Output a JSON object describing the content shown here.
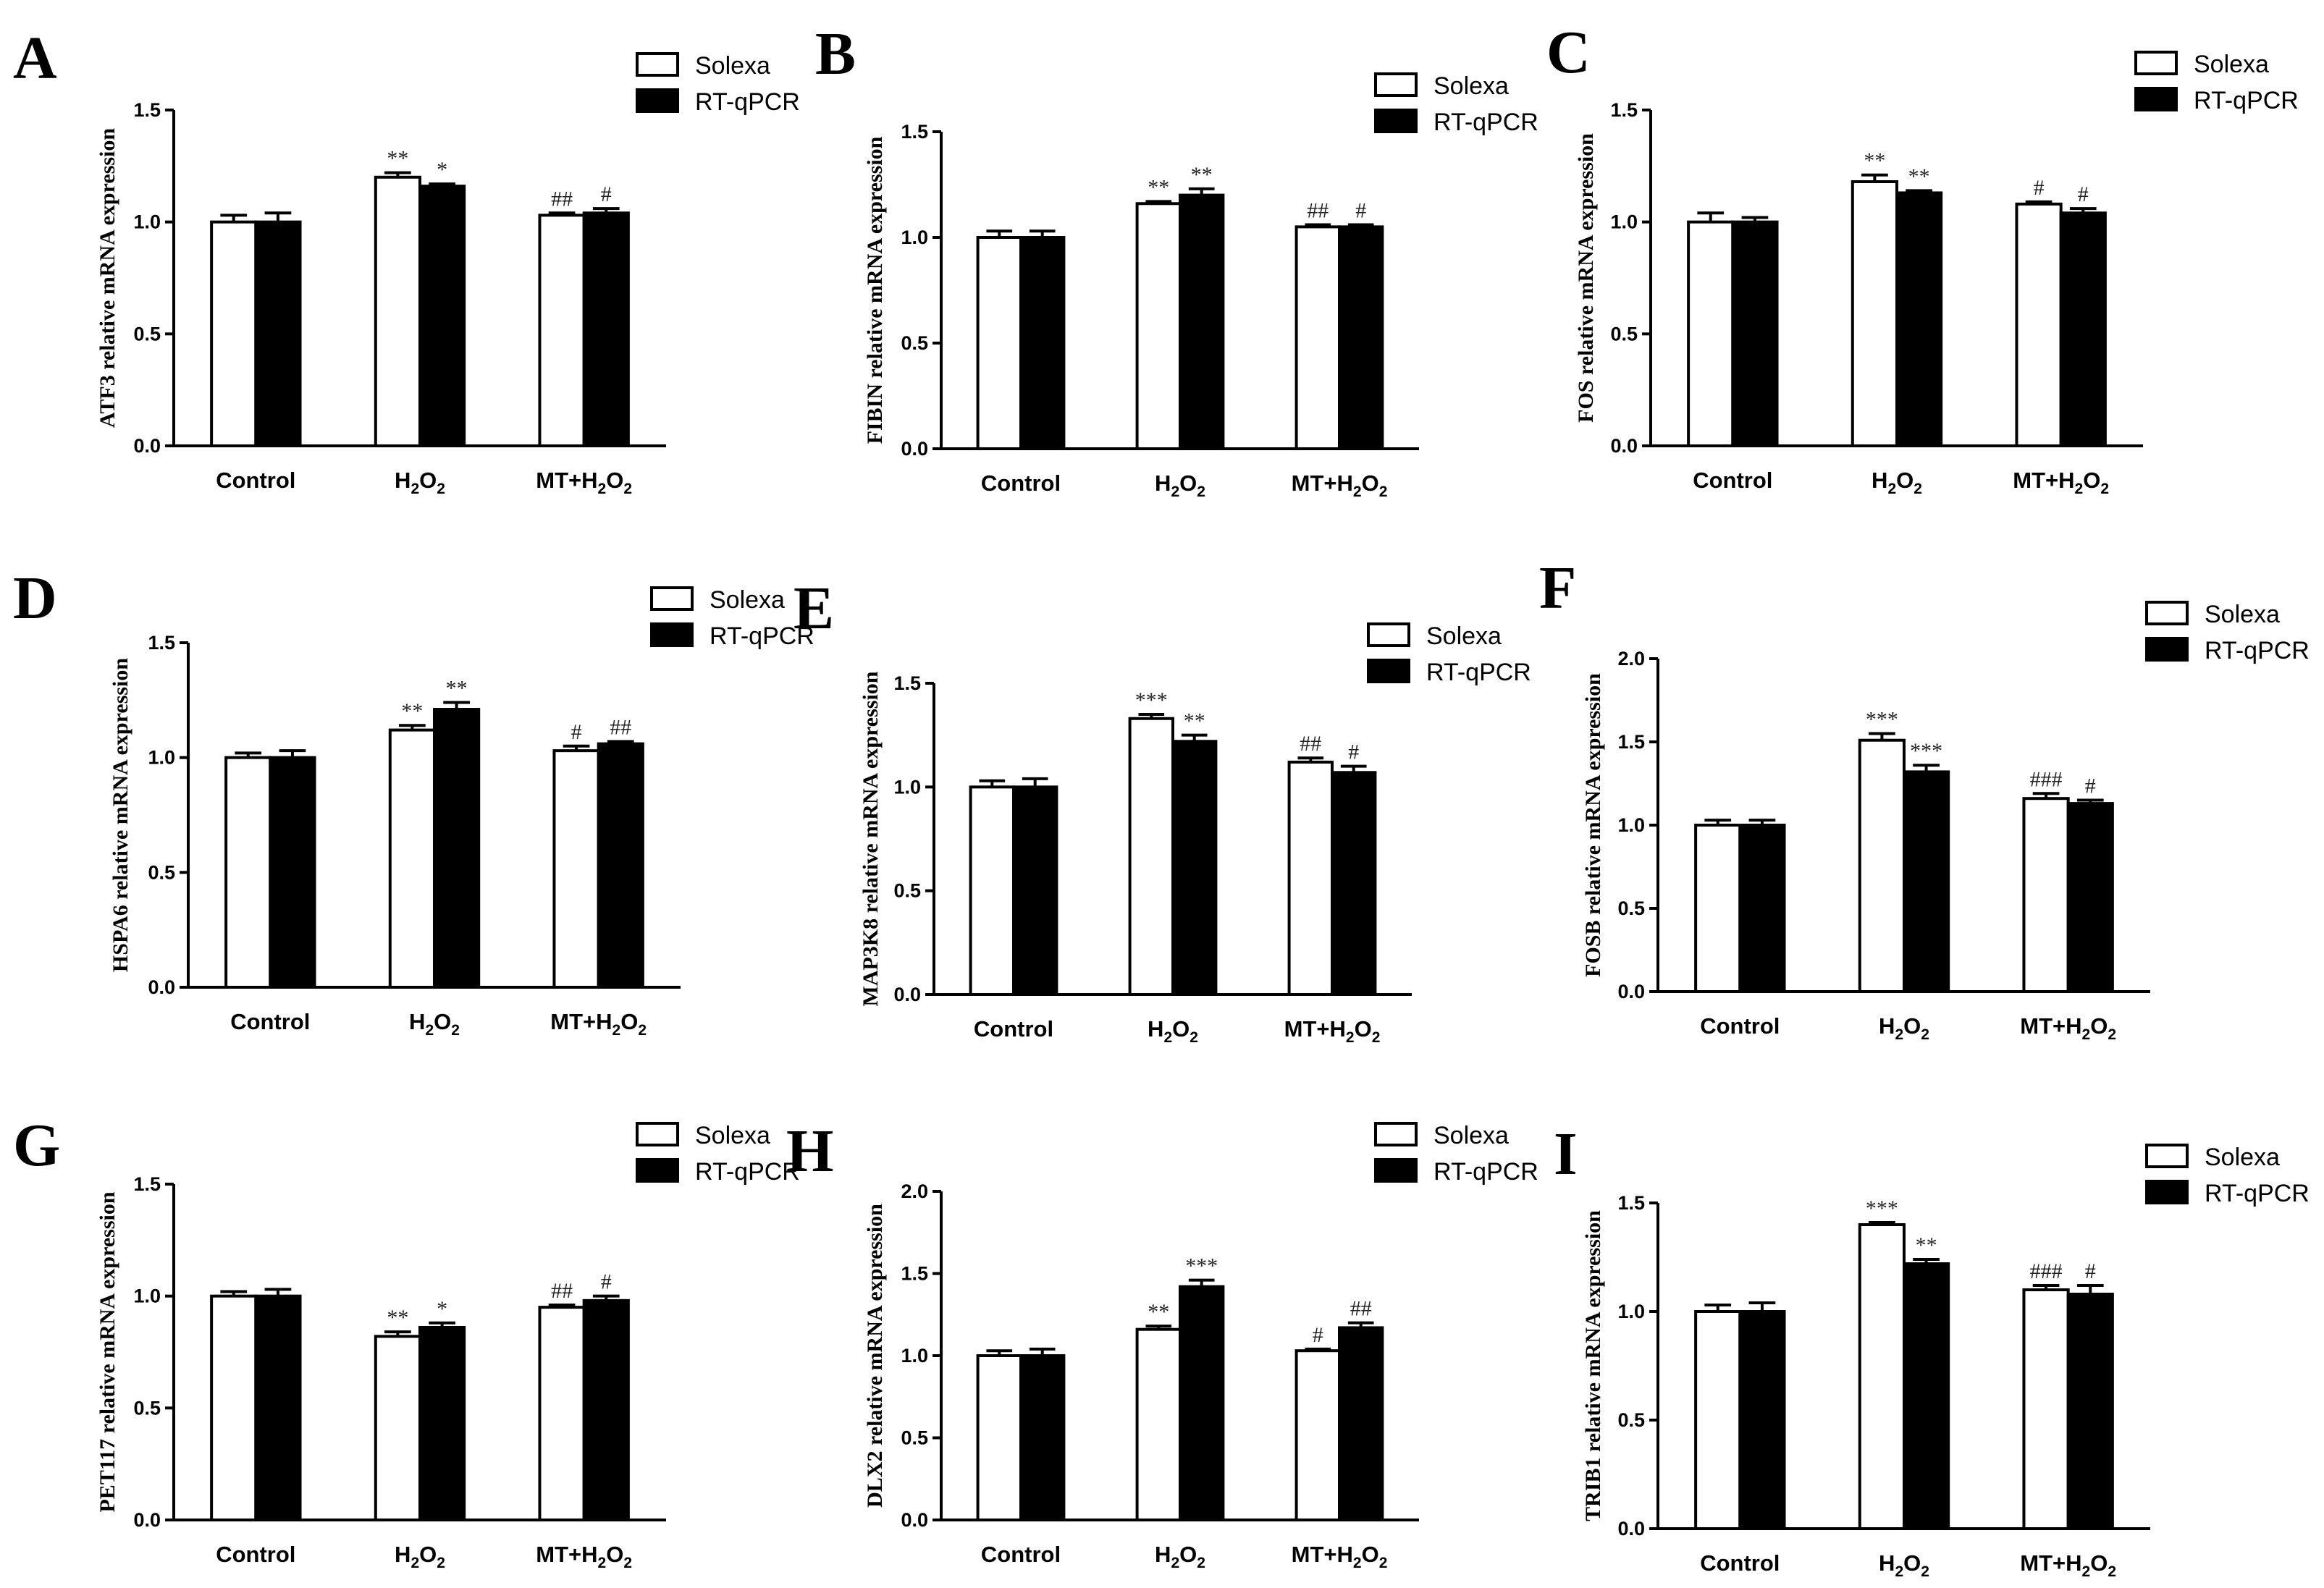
{
  "legend": {
    "solexa": "Solexa",
    "rtqpcr": "RT-qPCR"
  },
  "categories": [
    "Control",
    "H2O2",
    "MT+H2O2"
  ],
  "chart_data": [
    {
      "type": "bar",
      "panel": "A",
      "ylabel": "ATF3 relative mRNA expression",
      "ylim": [
        0,
        1.5
      ],
      "yticks": [
        "0.0",
        "0.5",
        "1.0",
        "1.5"
      ],
      "categories": [
        "Control",
        "H2O2",
        "MT+H2O2"
      ],
      "series": [
        {
          "name": "Solexa",
          "values": [
            1.0,
            1.2,
            1.03
          ],
          "errors": [
            0.03,
            0.02,
            0.01
          ],
          "annotations": [
            "",
            "**",
            "##"
          ]
        },
        {
          "name": "RT-qPCR",
          "values": [
            1.0,
            1.16,
            1.04
          ],
          "errors": [
            0.04,
            0.01,
            0.02
          ],
          "annotations": [
            "",
            "*",
            "#"
          ]
        }
      ]
    },
    {
      "type": "bar",
      "panel": "B",
      "ylabel": "FIBIN relative mRNA expression",
      "ylim": [
        0,
        1.5
      ],
      "yticks": [
        "0.0",
        "0.5",
        "1.0",
        "1.5"
      ],
      "categories": [
        "Control",
        "H2O2",
        "MT+H2O2"
      ],
      "series": [
        {
          "name": "Solexa",
          "values": [
            1.0,
            1.16,
            1.05
          ],
          "errors": [
            0.03,
            0.01,
            0.01
          ],
          "annotations": [
            "",
            "**",
            "##"
          ]
        },
        {
          "name": "RT-qPCR",
          "values": [
            1.0,
            1.2,
            1.05
          ],
          "errors": [
            0.03,
            0.03,
            0.01
          ],
          "annotations": [
            "",
            "**",
            "#"
          ]
        }
      ]
    },
    {
      "type": "bar",
      "panel": "C",
      "ylabel": "FOS relative mRNA expression",
      "ylim": [
        0,
        1.5
      ],
      "yticks": [
        "0.0",
        "0.5",
        "1.0",
        "1.5"
      ],
      "categories": [
        "Control",
        "H2O2",
        "MT+H2O2"
      ],
      "series": [
        {
          "name": "Solexa",
          "values": [
            1.0,
            1.18,
            1.08
          ],
          "errors": [
            0.04,
            0.03,
            0.01
          ],
          "annotations": [
            "",
            "**",
            "#"
          ]
        },
        {
          "name": "RT-qPCR",
          "values": [
            1.0,
            1.13,
            1.04
          ],
          "errors": [
            0.02,
            0.01,
            0.02
          ],
          "annotations": [
            "",
            "**",
            "#"
          ]
        }
      ]
    },
    {
      "type": "bar",
      "panel": "D",
      "ylabel": "HSPA6 relative mRNA expression",
      "ylim": [
        0,
        1.5
      ],
      "yticks": [
        "0.0",
        "0.5",
        "1.0",
        "1.5"
      ],
      "categories": [
        "Control",
        "H2O2",
        "MT+H2O2"
      ],
      "series": [
        {
          "name": "Solexa",
          "values": [
            1.0,
            1.12,
            1.03
          ],
          "errors": [
            0.02,
            0.02,
            0.02
          ],
          "annotations": [
            "",
            "**",
            "#"
          ]
        },
        {
          "name": "RT-qPCR",
          "values": [
            1.0,
            1.21,
            1.06
          ],
          "errors": [
            0.03,
            0.03,
            0.01
          ],
          "annotations": [
            "",
            "**",
            "##"
          ]
        }
      ]
    },
    {
      "type": "bar",
      "panel": "E",
      "ylabel": "MAP3K8 relative mRNA expression",
      "ylim": [
        0,
        1.5
      ],
      "yticks": [
        "0.0",
        "0.5",
        "1.0",
        "1.5"
      ],
      "categories": [
        "Control",
        "H2O2",
        "MT+H2O2"
      ],
      "series": [
        {
          "name": "Solexa",
          "values": [
            1.0,
            1.33,
            1.12
          ],
          "errors": [
            0.03,
            0.02,
            0.02
          ],
          "annotations": [
            "",
            "***",
            "##"
          ]
        },
        {
          "name": "RT-qPCR",
          "values": [
            1.0,
            1.22,
            1.07
          ],
          "errors": [
            0.04,
            0.03,
            0.03
          ],
          "annotations": [
            "",
            "**",
            "#"
          ]
        }
      ]
    },
    {
      "type": "bar",
      "panel": "F",
      "ylabel": "FOSB relative mRNA expression",
      "ylim": [
        0,
        2.0
      ],
      "yticks": [
        "0.0",
        "0.5",
        "1.0",
        "1.5",
        "2.0"
      ],
      "categories": [
        "Control",
        "H2O2",
        "MT+H2O2"
      ],
      "series": [
        {
          "name": "Solexa",
          "values": [
            1.0,
            1.51,
            1.16
          ],
          "errors": [
            0.03,
            0.04,
            0.03
          ],
          "annotations": [
            "",
            "***",
            "###"
          ]
        },
        {
          "name": "RT-qPCR",
          "values": [
            1.0,
            1.32,
            1.13
          ],
          "errors": [
            0.03,
            0.04,
            0.02
          ],
          "annotations": [
            "",
            "***",
            "#"
          ]
        }
      ]
    },
    {
      "type": "bar",
      "panel": "G",
      "ylabel": "PET117 relative mRNA expression",
      "ylim": [
        0,
        1.5
      ],
      "yticks": [
        "0.0",
        "0.5",
        "1.0",
        "1.5"
      ],
      "categories": [
        "Control",
        "H2O2",
        "MT+H2O2"
      ],
      "series": [
        {
          "name": "Solexa",
          "values": [
            1.0,
            0.82,
            0.95
          ],
          "errors": [
            0.02,
            0.02,
            0.01
          ],
          "annotations": [
            "",
            "**",
            "##"
          ]
        },
        {
          "name": "RT-qPCR",
          "values": [
            1.0,
            0.86,
            0.98
          ],
          "errors": [
            0.03,
            0.02,
            0.02
          ],
          "annotations": [
            "",
            "*",
            "#"
          ]
        }
      ]
    },
    {
      "type": "bar",
      "panel": "H",
      "ylabel": "DLX2 relative mRNA expression",
      "ylim": [
        0,
        2.0
      ],
      "yticks": [
        "0.0",
        "0.5",
        "1.0",
        "1.5",
        "2.0"
      ],
      "categories": [
        "Control",
        "H2O2",
        "MT+H2O2"
      ],
      "series": [
        {
          "name": "Solexa",
          "values": [
            1.0,
            1.16,
            1.03
          ],
          "errors": [
            0.03,
            0.02,
            0.01
          ],
          "annotations": [
            "",
            "**",
            "#"
          ]
        },
        {
          "name": "RT-qPCR",
          "values": [
            1.0,
            1.42,
            1.17
          ],
          "errors": [
            0.04,
            0.04,
            0.03
          ],
          "annotations": [
            "",
            "***",
            "##"
          ]
        }
      ]
    },
    {
      "type": "bar",
      "panel": "I",
      "ylabel": "TRIB1 relative mRNA expression",
      "ylim": [
        0,
        1.5
      ],
      "yticks": [
        "0.0",
        "0.5",
        "1.0",
        "1.5"
      ],
      "categories": [
        "Control",
        "H2O2",
        "MT+H2O2"
      ],
      "series": [
        {
          "name": "Solexa",
          "values": [
            1.0,
            1.4,
            1.1
          ],
          "errors": [
            0.03,
            0.01,
            0.02
          ],
          "annotations": [
            "",
            "***",
            "###"
          ]
        },
        {
          "name": "RT-qPCR",
          "values": [
            1.0,
            1.22,
            1.08
          ],
          "errors": [
            0.04,
            0.02,
            0.04
          ],
          "annotations": [
            "",
            "**",
            "#"
          ]
        }
      ]
    }
  ]
}
